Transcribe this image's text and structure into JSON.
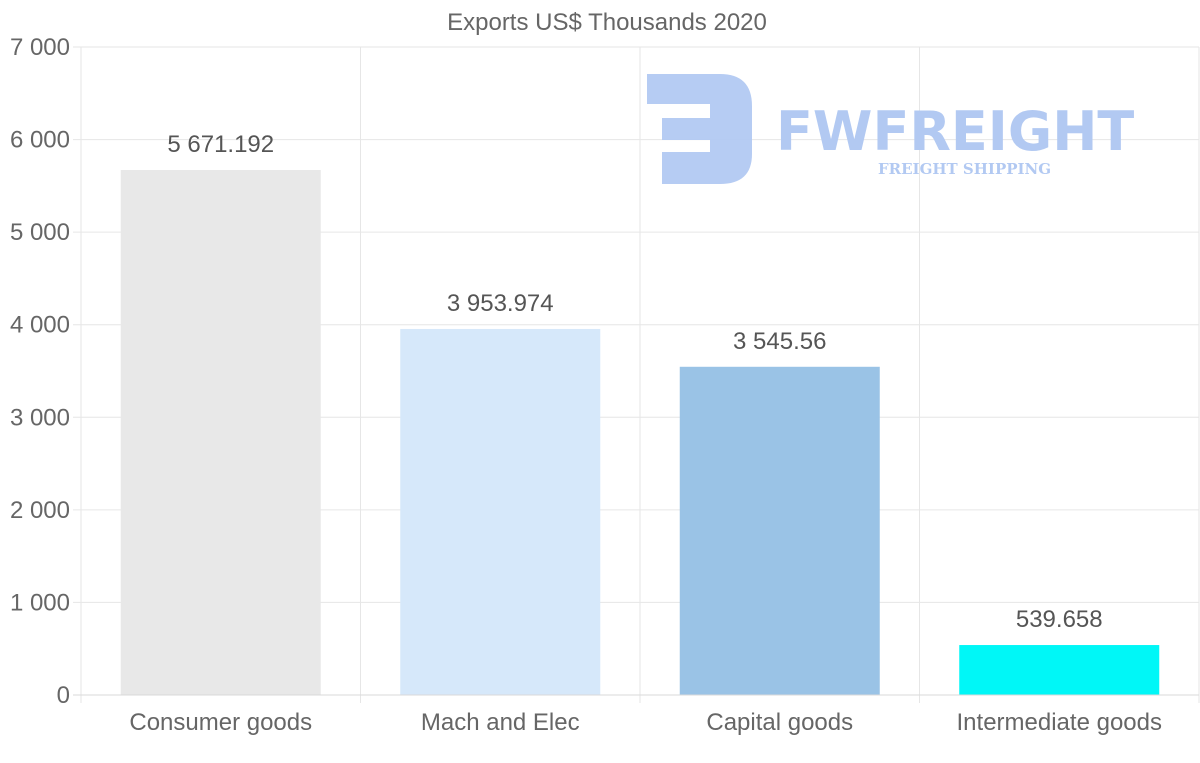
{
  "chart_data": {
    "type": "bar",
    "title": "Exports US$ Thousands 2020",
    "categories": [
      "Consumer goods",
      "Mach and Elec",
      "Capital goods",
      "Intermediate goods"
    ],
    "values": [
      5671.192,
      3953.974,
      3545.56,
      539.658
    ],
    "value_labels": [
      "5 671.192",
      "3 953.974",
      "3 545.56",
      "539.658"
    ],
    "bar_colors": [
      "#e8e8e8",
      "#d6e8fa",
      "#9ac3e6",
      "#00f7f7"
    ],
    "ylim": [
      0,
      7000
    ],
    "yticks": [
      0,
      1000,
      2000,
      3000,
      4000,
      5000,
      6000,
      7000
    ],
    "ytick_labels": [
      "0",
      "1 000",
      "2 000",
      "3 000",
      "4 000",
      "5 000",
      "6 000",
      "7 000"
    ],
    "xlabel": "",
    "ylabel": "",
    "grid": true
  },
  "watermark": {
    "brand": "FWFREIGHT",
    "tagline": "FREIGHT SHIPPING",
    "color": "#b2c9f2"
  }
}
